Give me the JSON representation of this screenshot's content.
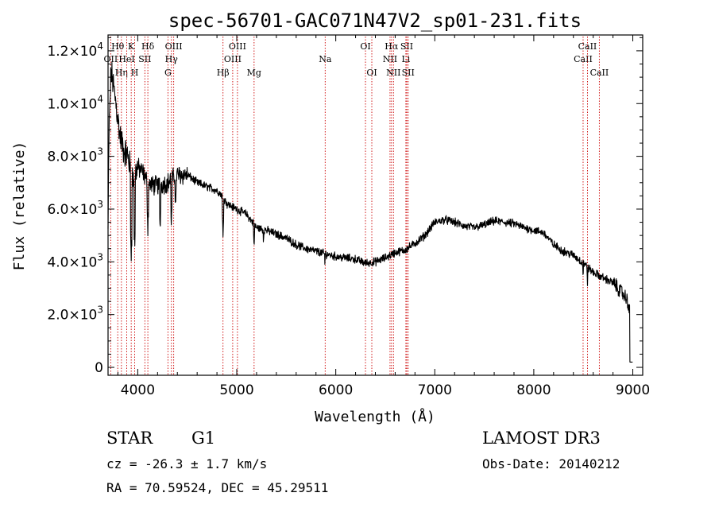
{
  "chart_data": {
    "type": "line",
    "title": "spec-56701-GAC071N47V2_sp01-231.fits",
    "xlabel": "Wavelength (Å)",
    "ylabel": "Flux (relative)",
    "xlim": [
      3700,
      9100
    ],
    "ylim": [
      -300,
      12600
    ],
    "x_ticks": [
      4000,
      5000,
      6000,
      7000,
      8000,
      9000
    ],
    "x_tick_labels": [
      "4000",
      "5000",
      "6000",
      "7000",
      "8000",
      "9000"
    ],
    "y_ticks": [
      0,
      2000,
      4000,
      6000,
      8000,
      10000,
      12000
    ],
    "y_tick_labels": [
      {
        "mant": "0",
        "exp": ""
      },
      {
        "mant": "2.0×10",
        "exp": "3"
      },
      {
        "mant": "4.0×10",
        "exp": "3"
      },
      {
        "mant": "6.0×10",
        "exp": "3"
      },
      {
        "mant": "8.0×10",
        "exp": "3"
      },
      {
        "mant": "1.0×10",
        "exp": "4"
      },
      {
        "mant": "1.2×10",
        "exp": "4"
      }
    ],
    "series": [
      {
        "name": "spectrum",
        "color": "#000000",
        "anchors": [
          [
            3700,
            5200
          ],
          [
            3710,
            9000
          ],
          [
            3730,
            11200
          ],
          [
            3750,
            10800
          ],
          [
            3780,
            10000
          ],
          [
            3820,
            8800
          ],
          [
            3860,
            8200
          ],
          [
            3900,
            8000
          ],
          [
            3930,
            7500
          ],
          [
            3960,
            7000
          ],
          [
            3990,
            7600
          ],
          [
            4050,
            7400
          ],
          [
            4100,
            7000
          ],
          [
            4150,
            6900
          ],
          [
            4200,
            6900
          ],
          [
            4300,
            7000
          ],
          [
            4400,
            7300
          ],
          [
            4500,
            7300
          ],
          [
            4600,
            7000
          ],
          [
            4700,
            6850
          ],
          [
            4800,
            6700
          ],
          [
            4860,
            6500
          ],
          [
            4900,
            6200
          ],
          [
            5000,
            6000
          ],
          [
            5100,
            5800
          ],
          [
            5200,
            5300
          ],
          [
            5300,
            5200
          ],
          [
            5400,
            5050
          ],
          [
            5500,
            4900
          ],
          [
            5600,
            4650
          ],
          [
            5700,
            4500
          ],
          [
            5800,
            4400
          ],
          [
            5900,
            4300
          ],
          [
            6000,
            4200
          ],
          [
            6100,
            4150
          ],
          [
            6200,
            4100
          ],
          [
            6300,
            3950
          ],
          [
            6400,
            4000
          ],
          [
            6500,
            4150
          ],
          [
            6600,
            4350
          ],
          [
            6700,
            4450
          ],
          [
            6800,
            4700
          ],
          [
            6900,
            5000
          ],
          [
            7000,
            5500
          ],
          [
            7100,
            5600
          ],
          [
            7200,
            5500
          ],
          [
            7300,
            5350
          ],
          [
            7400,
            5300
          ],
          [
            7500,
            5400
          ],
          [
            7600,
            5550
          ],
          [
            7700,
            5500
          ],
          [
            7800,
            5450
          ],
          [
            7900,
            5300
          ],
          [
            8000,
            5200
          ],
          [
            8100,
            5100
          ],
          [
            8200,
            4650
          ],
          [
            8300,
            4400
          ],
          [
            8400,
            4250
          ],
          [
            8500,
            3950
          ],
          [
            8600,
            3600
          ],
          [
            8700,
            3400
          ],
          [
            8800,
            3200
          ],
          [
            8850,
            3000
          ],
          [
            8900,
            2800
          ],
          [
            8950,
            2500
          ],
          [
            9000,
            1400
          ]
        ],
        "dips": [
          [
            3934,
            4400
          ],
          [
            3969,
            4600
          ],
          [
            4102,
            5300
          ],
          [
            4226,
            5300
          ],
          [
            4340,
            5400
          ],
          [
            4383,
            6000
          ],
          [
            4861,
            5000
          ],
          [
            5175,
            4500
          ],
          [
            5270,
            4700
          ],
          [
            5890,
            3900
          ],
          [
            6563,
            4150
          ],
          [
            8498,
            3400
          ],
          [
            8542,
            3200
          ],
          [
            8662,
            3300
          ]
        ]
      }
    ],
    "emission_lines": [
      {
        "label": "OII",
        "x": 3727,
        "row": 2
      },
      {
        "label": "Hθ",
        "x": 3798,
        "row": 1
      },
      {
        "label": "K",
        "x": 3934,
        "row": 1
      },
      {
        "label": "Hη",
        "x": 3835,
        "row": 3
      },
      {
        "label": "HeI",
        "x": 3889,
        "row": 2
      },
      {
        "label": "H",
        "x": 3969,
        "row": 3
      },
      {
        "label": "SII",
        "x": 4072,
        "row": 2
      },
      {
        "label": "Hδ",
        "x": 4102,
        "row": 1
      },
      {
        "label": "G",
        "x": 4305,
        "row": 3
      },
      {
        "label": "Hγ",
        "x": 4340,
        "row": 2
      },
      {
        "label": "OIII",
        "x": 4363,
        "row": 1
      },
      {
        "label": "Hβ",
        "x": 4861,
        "row": 3
      },
      {
        "label": "OIII",
        "x": 4959,
        "row": 2
      },
      {
        "label": "OIII",
        "x": 5007,
        "row": 1
      },
      {
        "label": "Mg",
        "x": 5175,
        "row": 3
      },
      {
        "label": "Na",
        "x": 5893,
        "row": 2
      },
      {
        "label": "OI",
        "x": 6300,
        "row": 1
      },
      {
        "label": "OI",
        "x": 6364,
        "row": 3
      },
      {
        "label": "NII",
        "x": 6548,
        "row": 2
      },
      {
        "label": "Hα",
        "x": 6563,
        "row": 1
      },
      {
        "label": "NII",
        "x": 6583,
        "row": 3
      },
      {
        "label": "Li",
        "x": 6708,
        "row": 2
      },
      {
        "label": "SII",
        "x": 6717,
        "row": 1
      },
      {
        "label": "SII",
        "x": 6731,
        "row": 3
      },
      {
        "label": "CaII",
        "x": 8498,
        "row": 2
      },
      {
        "label": "CaII",
        "x": 8542,
        "row": 1
      },
      {
        "label": "CaII",
        "x": 8662,
        "row": 3
      }
    ]
  },
  "info": {
    "object_class": "STAR",
    "subclass": "G1",
    "survey": "LAMOST DR3",
    "redshift": "cz = -26.3 ± 1.7 km/s",
    "obs_date": "Obs-Date: 20140212",
    "coords": "RA =  70.59524, DEC =  45.29511"
  },
  "colors": {
    "background": "#ffffff",
    "ink": "#000000",
    "line_marker": "#cc0000"
  }
}
